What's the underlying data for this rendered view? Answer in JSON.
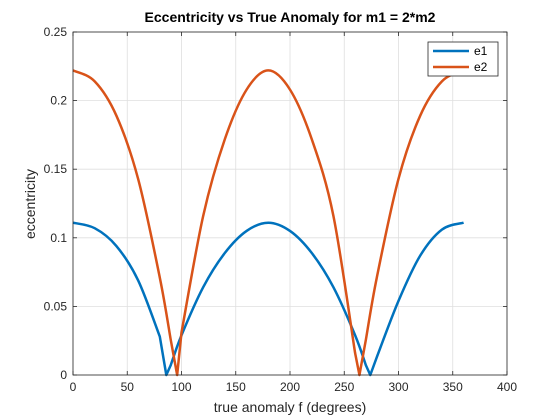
{
  "chart_data": {
    "type": "line",
    "title": "Eccentricity vs True Anomaly for m1 = 2*m2",
    "xlabel": "true anomaly f (degrees)",
    "ylabel": "eccentricity",
    "xlim": [
      0,
      400
    ],
    "ylim": [
      0,
      0.25
    ],
    "xticks": [
      0,
      50,
      100,
      150,
      200,
      250,
      300,
      350,
      400
    ],
    "yticks": [
      0,
      0.05,
      0.1,
      0.15,
      0.2,
      0.25
    ],
    "xtick_labels": [
      "0",
      "50",
      "100",
      "150",
      "200",
      "250",
      "300",
      "350",
      "400"
    ],
    "ytick_labels": [
      "0",
      "0.05",
      "0.1",
      "0.15",
      "0.2",
      "0.25"
    ],
    "grid": true,
    "legend_position": "top-right",
    "series": [
      {
        "name": "e1",
        "color": "#0072BD",
        "x": [
          0,
          20,
          40,
          60,
          80,
          86,
          90,
          100,
          120,
          140,
          160,
          180,
          200,
          220,
          240,
          260,
          270,
          274,
          280,
          300,
          320,
          340,
          360
        ],
        "y": [
          0.111,
          0.107,
          0.094,
          0.069,
          0.028,
          0.0,
          0.007,
          0.029,
          0.064,
          0.089,
          0.105,
          0.111,
          0.105,
          0.089,
          0.064,
          0.029,
          0.007,
          0.0,
          0.013,
          0.054,
          0.087,
          0.106,
          0.111
        ]
      },
      {
        "name": "e2",
        "color": "#D95319",
        "x": [
          0,
          20,
          40,
          60,
          80,
          90,
          96,
          100,
          120,
          140,
          160,
          180,
          200,
          220,
          240,
          260,
          264,
          270,
          280,
          300,
          320,
          340,
          360
        ],
        "y": [
          0.222,
          0.214,
          0.189,
          0.143,
          0.071,
          0.026,
          0.0,
          0.031,
          0.116,
          0.172,
          0.208,
          0.222,
          0.208,
          0.172,
          0.116,
          0.016,
          0.0,
          0.026,
          0.071,
          0.143,
          0.189,
          0.214,
          0.222
        ]
      }
    ]
  }
}
